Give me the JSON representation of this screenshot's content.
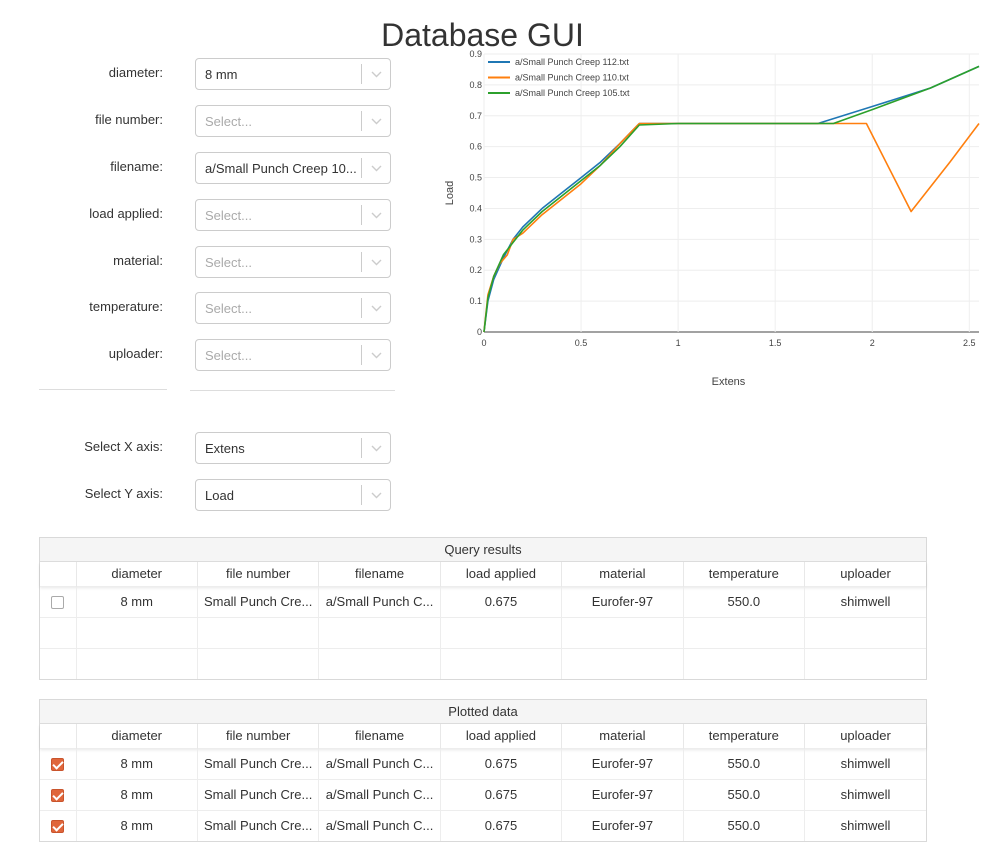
{
  "page_title": "Database GUI",
  "filters": [
    {
      "label": "diameter:",
      "value": "8 mm",
      "placeholder": ""
    },
    {
      "label": "file number:",
      "value": "",
      "placeholder": "Select..."
    },
    {
      "label": "filename:",
      "value": "a/Small Punch Creep 10...",
      "placeholder": ""
    },
    {
      "label": "load applied:",
      "value": "",
      "placeholder": "Select..."
    },
    {
      "label": "material:",
      "value": "",
      "placeholder": "Select..."
    },
    {
      "label": "temperature:",
      "value": "",
      "placeholder": "Select..."
    },
    {
      "label": "uploader:",
      "value": "",
      "placeholder": "Select..."
    }
  ],
  "axes_select": {
    "x_label": "Select X axis:",
    "x_value": "Extens",
    "y_label": "Select Y axis:",
    "y_value": "Load"
  },
  "chart_data": {
    "type": "line",
    "xlabel": "Extens",
    "ylabel": "Load",
    "xlim": [
      0,
      2.55
    ],
    "ylim": [
      0,
      0.9
    ],
    "x_ticks": [
      "0",
      "0.5",
      "1",
      "1.5",
      "2",
      "2.5"
    ],
    "y_ticks": [
      "0",
      "0.1",
      "0.2",
      "0.3",
      "0.4",
      "0.5",
      "0.6",
      "0.7",
      "0.8",
      "0.9"
    ],
    "grid": true,
    "legend_position": "top-left",
    "series": [
      {
        "name": "a/Small Punch Creep 112.txt",
        "color": "#1f77b4",
        "x": [
          0,
          0.02,
          0.05,
          0.1,
          0.15,
          0.2,
          0.3,
          0.4,
          0.5,
          0.6,
          0.7,
          0.8,
          1.0,
          1.2,
          1.4,
          1.6,
          1.72,
          2.0,
          2.3,
          2.55
        ],
        "y": [
          0,
          0.1,
          0.17,
          0.24,
          0.3,
          0.34,
          0.4,
          0.45,
          0.5,
          0.55,
          0.61,
          0.675,
          0.675,
          0.675,
          0.675,
          0.675,
          0.675,
          0.73,
          0.79,
          0.86
        ]
      },
      {
        "name": "a/Small Punch Creep 110.txt",
        "color": "#ff7f0e",
        "x": [
          0,
          0.02,
          0.05,
          0.08,
          0.12,
          0.15,
          0.2,
          0.3,
          0.4,
          0.5,
          0.6,
          0.7,
          0.8,
          1.0,
          1.2,
          1.4,
          1.6,
          1.8,
          1.97,
          2.2,
          2.4,
          2.55
        ],
        "y": [
          0,
          0.12,
          0.18,
          0.22,
          0.25,
          0.3,
          0.32,
          0.38,
          0.43,
          0.48,
          0.54,
          0.61,
          0.675,
          0.675,
          0.675,
          0.675,
          0.675,
          0.675,
          0.675,
          0.39,
          0.55,
          0.675
        ]
      },
      {
        "name": "a/Small Punch Creep 105.txt",
        "color": "#2ca02c",
        "x": [
          0,
          0.02,
          0.05,
          0.1,
          0.15,
          0.2,
          0.3,
          0.4,
          0.5,
          0.6,
          0.7,
          0.8,
          1.0,
          1.2,
          1.4,
          1.6,
          1.8,
          2.0,
          2.3,
          2.55
        ],
        "y": [
          0,
          0.11,
          0.18,
          0.25,
          0.29,
          0.33,
          0.39,
          0.44,
          0.49,
          0.54,
          0.6,
          0.67,
          0.675,
          0.675,
          0.675,
          0.675,
          0.675,
          0.72,
          0.79,
          0.86
        ]
      }
    ]
  },
  "query_results": {
    "title": "Query results",
    "columns": [
      "diameter",
      "file number",
      "filename",
      "load applied",
      "material",
      "temperature",
      "uploader"
    ],
    "rows": [
      {
        "checked": false,
        "cells": [
          "8 mm",
          "Small Punch Cre...",
          "a/Small Punch C...",
          "0.675",
          "Eurofer-97",
          "550.0",
          "shimwell"
        ]
      }
    ],
    "empty_rows": 2
  },
  "plotted_data": {
    "title": "Plotted data",
    "columns": [
      "diameter",
      "file number",
      "filename",
      "load applied",
      "material",
      "temperature",
      "uploader"
    ],
    "rows": [
      {
        "checked": true,
        "cells": [
          "8 mm",
          "Small Punch Cre...",
          "a/Small Punch C...",
          "0.675",
          "Eurofer-97",
          "550.0",
          "shimwell"
        ]
      },
      {
        "checked": true,
        "cells": [
          "8 mm",
          "Small Punch Cre...",
          "a/Small Punch C...",
          "0.675",
          "Eurofer-97",
          "550.0",
          "shimwell"
        ]
      },
      {
        "checked": true,
        "cells": [
          "8 mm",
          "Small Punch Cre...",
          "a/Small Punch C...",
          "0.675",
          "Eurofer-97",
          "550.0",
          "shimwell"
        ]
      }
    ]
  },
  "icons": {
    "dropdown": "chevron-down-icon",
    "checkbox": "checkbox-icon"
  },
  "colors": {
    "checkbox_accent": "#e0663b",
    "border": "#cccccc",
    "placeholder": "#aaaaaa"
  }
}
